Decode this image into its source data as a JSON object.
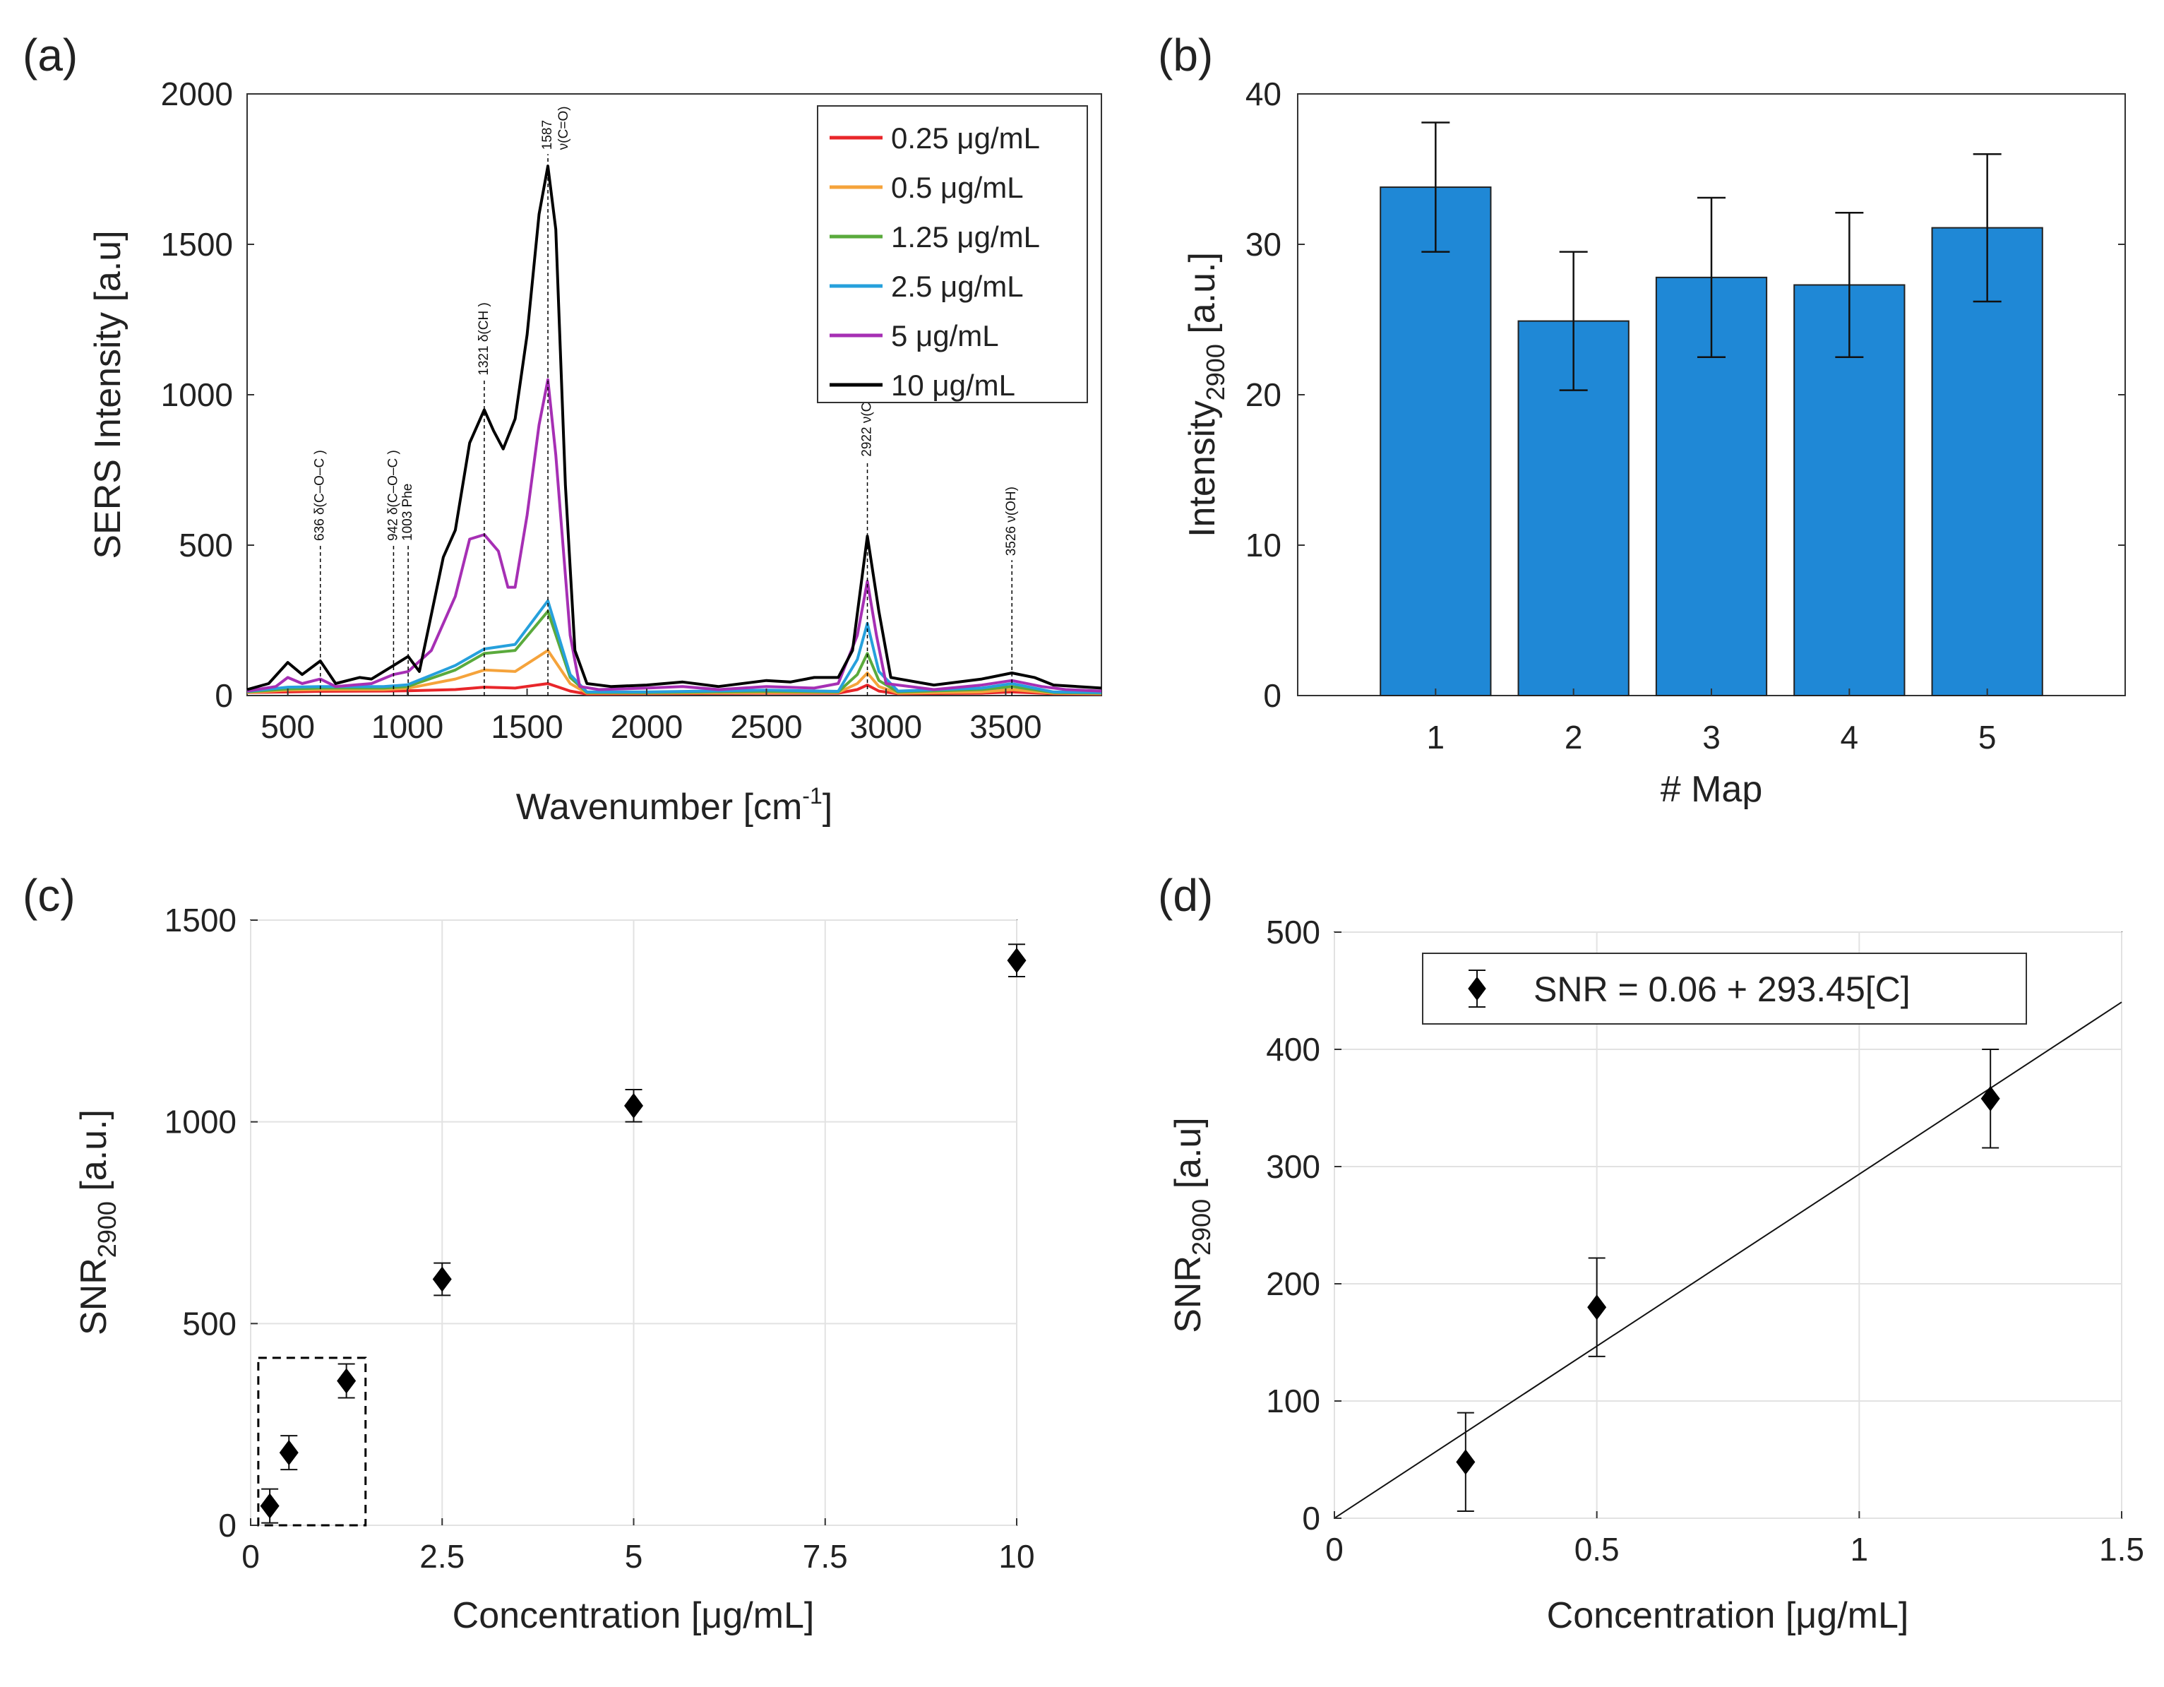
{
  "chart_data": [
    {
      "panel": "(a)",
      "type": "line",
      "xlabel": "Wavenumber [cm",
      "xlabel_sup": "-1",
      "xlabel_tail": "]",
      "ylabel": "SERS Intensity [a.u]",
      "xlim": [
        330,
        3900
      ],
      "ylim": [
        0,
        2000
      ],
      "xticks": [
        500,
        1000,
        1500,
        2000,
        2500,
        3000,
        3500
      ],
      "yticks": [
        0,
        500,
        1000,
        1500,
        2000
      ],
      "legend_placement": "top-right",
      "peaks": [
        {
          "x": 636,
          "label": "636 δ(C–O–C )",
          "top": 500
        },
        {
          "x": 942,
          "label": "942 δ(C–O–C )",
          "top": 500
        },
        {
          "x": 1003,
          "label": "1003 Phe",
          "top": 500
        },
        {
          "x": 1321,
          "label": "1321 δ(CH )",
          "top": 1050
        },
        {
          "x": 1587,
          "label": "1587",
          "label2": "ν(C=O)",
          "top": 1800
        },
        {
          "x": 2922,
          "label": "2922 ν(CH",
          "sub": "n",
          "tail": ")",
          "top": 780
        },
        {
          "x": 3526,
          "label": "3526 ν(OH)",
          "top": 450
        }
      ],
      "series": [
        {
          "name": "0.25 μg/mL",
          "color": "#e8262a",
          "points": [
            [
              330,
              10
            ],
            [
              500,
              12
            ],
            [
              636,
              14
            ],
            [
              900,
              15
            ],
            [
              1000,
              16
            ],
            [
              1200,
              20
            ],
            [
              1321,
              28
            ],
            [
              1450,
              25
            ],
            [
              1587,
              40
            ],
            [
              1680,
              15
            ],
            [
              1750,
              5
            ],
            [
              2000,
              6
            ],
            [
              2500,
              8
            ],
            [
              2800,
              8
            ],
            [
              2880,
              20
            ],
            [
              2922,
              35
            ],
            [
              2970,
              15
            ],
            [
              3050,
              6
            ],
            [
              3400,
              8
            ],
            [
              3526,
              12
            ],
            [
              3700,
              6
            ],
            [
              3900,
              5
            ]
          ]
        },
        {
          "name": "0.5 μg/mL",
          "color": "#f5a33b",
          "points": [
            [
              330,
              10
            ],
            [
              500,
              18
            ],
            [
              636,
              20
            ],
            [
              900,
              20
            ],
            [
              1000,
              24
            ],
            [
              1200,
              55
            ],
            [
              1321,
              85
            ],
            [
              1450,
              80
            ],
            [
              1587,
              150
            ],
            [
              1680,
              40
            ],
            [
              1750,
              8
            ],
            [
              2000,
              8
            ],
            [
              2500,
              10
            ],
            [
              2800,
              10
            ],
            [
              2880,
              40
            ],
            [
              2922,
              75
            ],
            [
              2970,
              30
            ],
            [
              3050,
              8
            ],
            [
              3400,
              12
            ],
            [
              3526,
              20
            ],
            [
              3700,
              8
            ],
            [
              3900,
              6
            ]
          ]
        },
        {
          "name": "1.25 μg/mL",
          "color": "#5aaa3c",
          "points": [
            [
              330,
              12
            ],
            [
              500,
              22
            ],
            [
              636,
              25
            ],
            [
              900,
              25
            ],
            [
              1000,
              30
            ],
            [
              1200,
              85
            ],
            [
              1321,
              140
            ],
            [
              1450,
              150
            ],
            [
              1587,
              280
            ],
            [
              1680,
              60
            ],
            [
              1750,
              10
            ],
            [
              2000,
              10
            ],
            [
              2500,
              14
            ],
            [
              2800,
              12
            ],
            [
              2880,
              70
            ],
            [
              2922,
              140
            ],
            [
              2970,
              50
            ],
            [
              3050,
              12
            ],
            [
              3400,
              20
            ],
            [
              3526,
              30
            ],
            [
              3700,
              10
            ],
            [
              3900,
              8
            ]
          ]
        },
        {
          "name": "2.5 μg/mL",
          "color": "#26a0dc",
          "points": [
            [
              330,
              14
            ],
            [
              500,
              28
            ],
            [
              636,
              30
            ],
            [
              900,
              30
            ],
            [
              1000,
              36
            ],
            [
              1200,
              100
            ],
            [
              1321,
              155
            ],
            [
              1450,
              170
            ],
            [
              1587,
              315
            ],
            [
              1680,
              70
            ],
            [
              1750,
              12
            ],
            [
              2000,
              12
            ],
            [
              2500,
              18
            ],
            [
              2800,
              14
            ],
            [
              2880,
              120
            ],
            [
              2922,
              240
            ],
            [
              2970,
              80
            ],
            [
              3050,
              15
            ],
            [
              3400,
              25
            ],
            [
              3526,
              40
            ],
            [
              3700,
              12
            ],
            [
              3900,
              10
            ]
          ]
        },
        {
          "name": "5 μg/mL",
          "color": "#a62fb4",
          "points": [
            [
              330,
              15
            ],
            [
              450,
              30
            ],
            [
              500,
              60
            ],
            [
              560,
              40
            ],
            [
              636,
              55
            ],
            [
              700,
              30
            ],
            [
              850,
              40
            ],
            [
              942,
              70
            ],
            [
              1003,
              80
            ],
            [
              1100,
              150
            ],
            [
              1200,
              330
            ],
            [
              1260,
              520
            ],
            [
              1321,
              535
            ],
            [
              1380,
              480
            ],
            [
              1420,
              360
            ],
            [
              1450,
              360
            ],
            [
              1500,
              600
            ],
            [
              1550,
              900
            ],
            [
              1587,
              1050
            ],
            [
              1620,
              800
            ],
            [
              1680,
              200
            ],
            [
              1720,
              30
            ],
            [
              1800,
              20
            ],
            [
              2000,
              25
            ],
            [
              2150,
              30
            ],
            [
              2300,
              20
            ],
            [
              2500,
              30
            ],
            [
              2700,
              25
            ],
            [
              2800,
              40
            ],
            [
              2880,
              200
            ],
            [
              2922,
              380
            ],
            [
              2960,
              200
            ],
            [
              3000,
              40
            ],
            [
              3200,
              20
            ],
            [
              3400,
              35
            ],
            [
              3526,
              50
            ],
            [
              3650,
              30
            ],
            [
              3750,
              20
            ],
            [
              3900,
              15
            ]
          ]
        },
        {
          "name": "10 μg/mL",
          "color": "#000000",
          "points": [
            [
              330,
              20
            ],
            [
              420,
              40
            ],
            [
              500,
              110
            ],
            [
              560,
              70
            ],
            [
              636,
              115
            ],
            [
              700,
              40
            ],
            [
              800,
              60
            ],
            [
              850,
              55
            ],
            [
              942,
              100
            ],
            [
              1003,
              130
            ],
            [
              1050,
              80
            ],
            [
              1100,
              270
            ],
            [
              1150,
              460
            ],
            [
              1200,
              550
            ],
            [
              1260,
              840
            ],
            [
              1321,
              950
            ],
            [
              1360,
              880
            ],
            [
              1400,
              820
            ],
            [
              1450,
              920
            ],
            [
              1500,
              1200
            ],
            [
              1550,
              1600
            ],
            [
              1587,
              1760
            ],
            [
              1620,
              1550
            ],
            [
              1660,
              700
            ],
            [
              1700,
              150
            ],
            [
              1750,
              40
            ],
            [
              1850,
              30
            ],
            [
              2000,
              35
            ],
            [
              2150,
              45
            ],
            [
              2300,
              30
            ],
            [
              2500,
              50
            ],
            [
              2600,
              45
            ],
            [
              2700,
              60
            ],
            [
              2800,
              60
            ],
            [
              2860,
              150
            ],
            [
              2922,
              530
            ],
            [
              2970,
              280
            ],
            [
              3020,
              60
            ],
            [
              3200,
              35
            ],
            [
              3400,
              55
            ],
            [
              3526,
              75
            ],
            [
              3620,
              60
            ],
            [
              3700,
              35
            ],
            [
              3900,
              25
            ]
          ]
        }
      ]
    },
    {
      "panel": "(b)",
      "type": "bar",
      "xlabel": "# Map",
      "ylabel": "Intensity",
      "ylabel_sub": "2900",
      "ylabel_tail": " [a.u.]",
      "xlim": [
        0,
        6
      ],
      "ylim": [
        0,
        40
      ],
      "yticks": [
        0,
        10,
        20,
        30,
        40
      ],
      "categories": [
        "1",
        "2",
        "3",
        "4",
        "5"
      ],
      "values": [
        33.8,
        24.9,
        27.8,
        27.3,
        31.1
      ],
      "errors": [
        4.3,
        4.6,
        5.3,
        4.8,
        4.9
      ],
      "color": "#1f88d6"
    },
    {
      "panel": "(c)",
      "type": "scatter",
      "xlabel": "Concentration [μg/mL]",
      "ylabel": "SNR",
      "ylabel_sub": "2900",
      "ylabel_tail": " [a.u.]",
      "xlim": [
        0,
        10
      ],
      "ylim": [
        0,
        1500
      ],
      "xticks": [
        "0",
        "2.5",
        "5",
        "7.5",
        "10"
      ],
      "yticks": [
        0,
        500,
        1000,
        1500
      ],
      "grid": true,
      "x": [
        0.25,
        0.5,
        1.25,
        2.5,
        5,
        10
      ],
      "y": [
        48,
        180,
        358,
        610,
        1040,
        1400
      ],
      "errors": [
        42,
        42,
        42,
        40,
        40,
        40
      ],
      "inset_box": {
        "x": [
          0.1,
          1.5
        ],
        "y": [
          0,
          415
        ]
      }
    },
    {
      "panel": "(d)",
      "type": "scatter",
      "xlabel": "Concentration [μg/mL]",
      "ylabel": "SNR",
      "ylabel_sub": "2900",
      "ylabel_tail": " [a.u]",
      "xlim": [
        0,
        1.5
      ],
      "ylim": [
        0,
        500
      ],
      "xticks": [
        "0",
        "0.5",
        "1",
        "1.5"
      ],
      "yticks": [
        0,
        100,
        200,
        300,
        400,
        500
      ],
      "grid": true,
      "x": [
        0.25,
        0.5,
        1.25
      ],
      "y": [
        48,
        180,
        358
      ],
      "errors": [
        42,
        42,
        42
      ],
      "fit": {
        "intercept": 0.06,
        "slope": 293.45
      },
      "legend_text": "SNR = 0.06 + 293.45[C]",
      "legend_placement": "top-center"
    }
  ]
}
